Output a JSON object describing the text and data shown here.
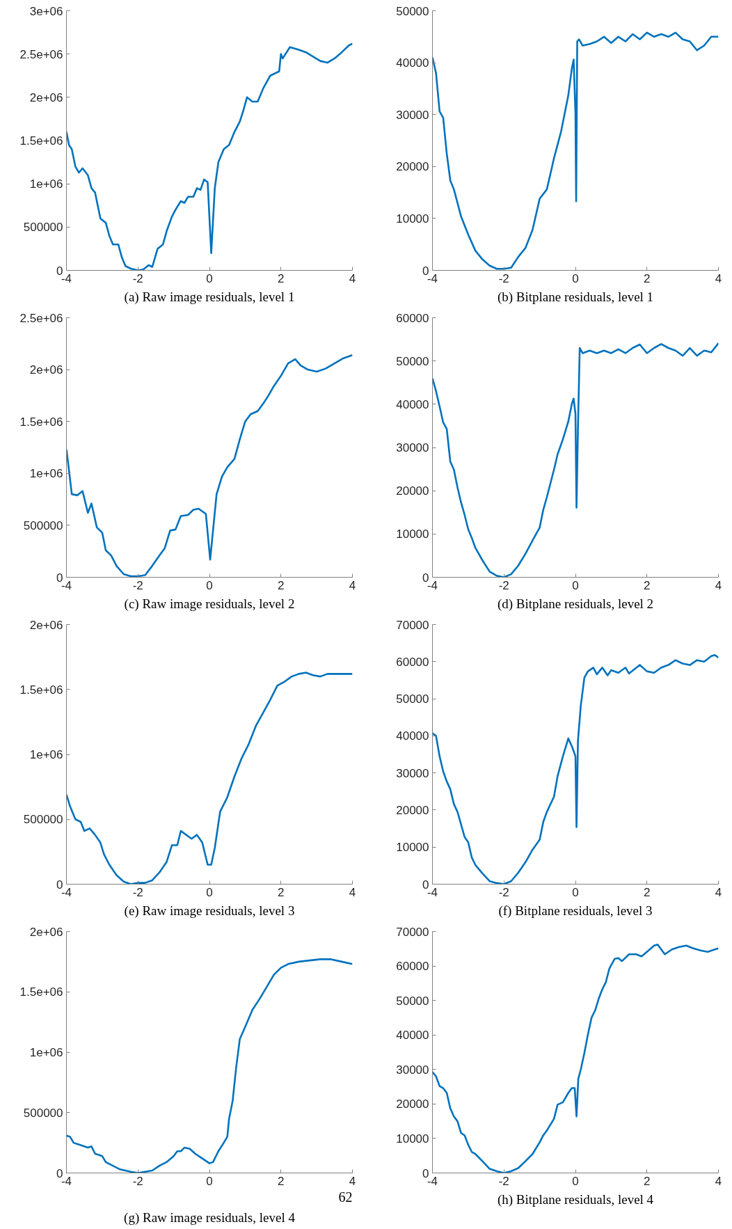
{
  "chart_data": [
    {
      "type": "line",
      "title": "(a) Raw image residuals, level 1",
      "x": [
        -4,
        -3.93,
        -3.85,
        -3.75,
        -3.65,
        -3.55,
        -3.4,
        -3.3,
        -3.2,
        -3.05,
        -2.9,
        -2.8,
        -2.7,
        -2.55,
        -2.45,
        -2.35,
        -2.2,
        -2.0,
        -1.85,
        -1.7,
        -1.6,
        -1.45,
        -1.3,
        -1.2,
        -1.05,
        -0.95,
        -0.8,
        -0.7,
        -0.6,
        -0.45,
        -0.35,
        -0.25,
        -0.15,
        -0.05,
        0.05,
        0.15,
        0.25,
        0.4,
        0.55,
        0.7,
        0.85,
        0.95,
        1.05,
        1.2,
        1.35,
        1.5,
        1.7,
        1.85,
        1.95,
        2.0,
        2.05,
        2.25,
        2.5,
        2.7,
        2.9,
        3.1,
        3.3,
        3.5,
        3.7,
        3.9,
        4.0
      ],
      "series": [
        {
          "color": "#0072bd",
          "values": [
            1600000,
            1450000,
            1400000,
            1200000,
            1130000,
            1180000,
            1100000,
            950000,
            900000,
            600000,
            550000,
            400000,
            300000,
            300000,
            150000,
            50000,
            20000,
            0,
            10000,
            60000,
            40000,
            250000,
            300000,
            450000,
            620000,
            700000,
            800000,
            780000,
            850000,
            850000,
            950000,
            930000,
            1050000,
            1020000,
            200000,
            950000,
            1250000,
            1400000,
            1450000,
            1600000,
            1720000,
            1850000,
            2000000,
            1950000,
            1950000,
            2100000,
            2250000,
            2280000,
            2300000,
            2500000,
            2450000,
            2580000,
            2550000,
            2520000,
            2470000,
            2420000,
            2400000,
            2450000,
            2520000,
            2600000,
            2620000
          ]
        }
      ],
      "xlim": [
        -4,
        4
      ],
      "xticks": [
        -4,
        -2,
        0,
        2,
        4
      ],
      "ylim": [
        0,
        3000000
      ],
      "yticks": [
        0,
        500000,
        {
          "value": 1000000,
          "label": "1e+06"
        },
        {
          "value": 1500000,
          "label": "1.5e+06"
        },
        {
          "value": 2000000,
          "label": "2e+06"
        },
        {
          "value": 2500000,
          "label": "2.5e+06"
        },
        {
          "value": 3000000,
          "label": "3e+06"
        }
      ]
    },
    {
      "type": "line",
      "title": "(b) Bitplane residuals, level 1",
      "x": [
        -4,
        -3.9,
        -3.8,
        -3.7,
        -3.6,
        -3.5,
        -3.4,
        -3.2,
        -3.0,
        -2.8,
        -2.6,
        -2.4,
        -2.2,
        -2.0,
        -1.8,
        -1.6,
        -1.4,
        -1.2,
        -1.0,
        -0.8,
        -0.6,
        -0.4,
        -0.2,
        -0.1,
        -0.05,
        0.0,
        0.02,
        0.05,
        0.1,
        0.2,
        0.4,
        0.6,
        0.8,
        1.0,
        1.2,
        1.4,
        1.6,
        1.8,
        2.0,
        2.2,
        2.4,
        2.6,
        2.8,
        3.0,
        3.2,
        3.4,
        3.6,
        3.8,
        4.0
      ],
      "series": [
        {
          "color": "#0072bd",
          "values": [
            41000,
            38000,
            30600,
            29400,
            22500,
            17300,
            15600,
            10400,
            6900,
            3800,
            2100,
            900,
            300,
            300,
            500,
            2600,
            4300,
            7800,
            13800,
            15600,
            21600,
            26800,
            33700,
            38900,
            40600,
            30300,
            13300,
            44100,
            44500,
            43300,
            43600,
            44100,
            45000,
            43800,
            45000,
            44100,
            45500,
            44500,
            45800,
            45000,
            45500,
            45000,
            45800,
            44500,
            44100,
            42400,
            43300,
            45000,
            45000
          ]
        }
      ],
      "xlim": [
        -4,
        4
      ],
      "xticks": [
        -4,
        -2,
        0,
        2,
        4
      ],
      "ylim": [
        0,
        50000
      ],
      "yticks": [
        0,
        10000,
        20000,
        30000,
        40000,
        50000
      ]
    },
    {
      "type": "line",
      "title": "(c) Raw image residuals, level 2",
      "x": [
        -4,
        -3.95,
        -3.85,
        -3.7,
        -3.55,
        -3.4,
        -3.3,
        -3.15,
        -3.0,
        -2.9,
        -2.75,
        -2.6,
        -2.4,
        -2.2,
        -2.0,
        -1.8,
        -1.6,
        -1.4,
        -1.25,
        -1.1,
        -0.95,
        -0.8,
        -0.6,
        -0.45,
        -0.3,
        -0.1,
        0.02,
        0.1,
        0.2,
        0.35,
        0.5,
        0.7,
        0.85,
        1.0,
        1.15,
        1.35,
        1.5,
        1.65,
        1.8,
        2.0,
        2.2,
        2.4,
        2.55,
        2.75,
        3.0,
        3.25,
        3.5,
        3.75,
        4.0
      ],
      "series": [
        {
          "color": "#0072bd",
          "values": [
            1230000,
            1090000,
            800000,
            790000,
            830000,
            620000,
            710000,
            480000,
            430000,
            260000,
            210000,
            110000,
            30000,
            10000,
            10000,
            20000,
            110000,
            210000,
            280000,
            450000,
            460000,
            590000,
            600000,
            650000,
            660000,
            610000,
            170000,
            450000,
            800000,
            970000,
            1060000,
            1140000,
            1330000,
            1500000,
            1570000,
            1600000,
            1670000,
            1750000,
            1840000,
            1940000,
            2060000,
            2100000,
            2040000,
            2000000,
            1980000,
            2010000,
            2060000,
            2110000,
            2140000
          ]
        }
      ],
      "xlim": [
        -4,
        4
      ],
      "xticks": [
        -4,
        -2,
        0,
        2,
        4
      ],
      "ylim": [
        0,
        2500000
      ],
      "yticks": [
        0,
        500000,
        {
          "value": 1000000,
          "label": "1e+06"
        },
        {
          "value": 1500000,
          "label": "1.5e+06"
        },
        {
          "value": 2000000,
          "label": "2e+06"
        },
        {
          "value": 2500000,
          "label": "2.5e+06"
        }
      ]
    },
    {
      "type": "line",
      "title": "(d) Bitplane residuals, level 2",
      "x": [
        -4,
        -3.9,
        -3.8,
        -3.7,
        -3.6,
        -3.5,
        -3.4,
        -3.3,
        -3.2,
        -3.1,
        -3.0,
        -2.9,
        -2.8,
        -2.6,
        -2.4,
        -2.2,
        -2.0,
        -1.8,
        -1.6,
        -1.4,
        -1.2,
        -1.0,
        -0.9,
        -0.8,
        -0.6,
        -0.5,
        -0.35,
        -0.2,
        -0.1,
        -0.05,
        0.0,
        0.03,
        0.07,
        0.12,
        0.2,
        0.4,
        0.6,
        0.8,
        1.0,
        1.2,
        1.4,
        1.6,
        1.8,
        2.0,
        2.2,
        2.4,
        2.6,
        2.8,
        3.0,
        3.2,
        3.4,
        3.6,
        3.8,
        4.0
      ],
      "series": [
        {
          "color": "#0072bd",
          "values": [
            46000,
            43000,
            39500,
            35800,
            34300,
            26700,
            24900,
            20800,
            17300,
            14400,
            11100,
            9100,
            6800,
            3900,
            1300,
            350,
            0,
            700,
            2700,
            5400,
            8500,
            11500,
            15600,
            18500,
            24900,
            28400,
            31900,
            36000,
            40100,
            41300,
            37800,
            16100,
            34300,
            53000,
            51800,
            52400,
            51800,
            52400,
            51800,
            52700,
            51800,
            53000,
            53800,
            51800,
            53000,
            53900,
            53000,
            52400,
            51200,
            53000,
            51200,
            52400,
            52000,
            54100
          ]
        }
      ],
      "xlim": [
        -4,
        4
      ],
      "xticks": [
        -4,
        -2,
        0,
        2,
        4
      ],
      "ylim": [
        0,
        60000
      ],
      "yticks": [
        0,
        10000,
        20000,
        30000,
        40000,
        50000,
        60000
      ]
    },
    {
      "type": "line",
      "title": "(e) Raw image residuals, level 3",
      "x": [
        -4,
        -3.9,
        -3.75,
        -3.6,
        -3.5,
        -3.35,
        -3.2,
        -3.05,
        -2.95,
        -2.8,
        -2.6,
        -2.4,
        -2.2,
        -2.0,
        -1.8,
        -1.6,
        -1.4,
        -1.2,
        -1.05,
        -0.9,
        -0.8,
        -0.65,
        -0.5,
        -0.35,
        -0.2,
        -0.05,
        0.05,
        0.15,
        0.3,
        0.5,
        0.7,
        0.9,
        1.1,
        1.3,
        1.5,
        1.7,
        1.9,
        2.1,
        2.3,
        2.5,
        2.7,
        2.9,
        3.1,
        3.3,
        3.6,
        4.0
      ],
      "series": [
        {
          "color": "#0072bd",
          "values": [
            690000,
            600000,
            500000,
            480000,
            410000,
            430000,
            380000,
            320000,
            230000,
            150000,
            70000,
            20000,
            0,
            10000,
            10000,
            30000,
            90000,
            170000,
            300000,
            300000,
            410000,
            380000,
            350000,
            380000,
            320000,
            150000,
            150000,
            280000,
            560000,
            670000,
            830000,
            970000,
            1080000,
            1220000,
            1320000,
            1420000,
            1530000,
            1560000,
            1600000,
            1620000,
            1630000,
            1610000,
            1600000,
            1620000,
            1620000,
            1620000
          ]
        }
      ],
      "xlim": [
        -4,
        4
      ],
      "xticks": [
        -4,
        -2,
        0,
        2,
        4
      ],
      "ylim": [
        0,
        2000000
      ],
      "yticks": [
        0,
        500000,
        {
          "value": 1000000,
          "label": "1e+06"
        },
        {
          "value": 1500000,
          "label": "1.5e+06"
        },
        {
          "value": 2000000,
          "label": "2e+06"
        }
      ]
    },
    {
      "type": "line",
      "title": "(f) Bitplane residuals, level 3",
      "x": [
        -4,
        -3.9,
        -3.8,
        -3.7,
        -3.6,
        -3.5,
        -3.4,
        -3.3,
        -3.2,
        -3.1,
        -3.0,
        -2.9,
        -2.8,
        -2.6,
        -2.4,
        -2.2,
        -2.0,
        -1.8,
        -1.6,
        -1.4,
        -1.2,
        -1.0,
        -0.9,
        -0.8,
        -0.6,
        -0.5,
        -0.35,
        -0.2,
        -0.1,
        0.0,
        0.03,
        0.07,
        0.15,
        0.25,
        0.35,
        0.5,
        0.6,
        0.75,
        0.9,
        1.0,
        1.2,
        1.4,
        1.5,
        1.8,
        2.0,
        2.2,
        2.4,
        2.6,
        2.8,
        3.0,
        3.2,
        3.4,
        3.6,
        3.8,
        3.9,
        4.0
      ],
      "series": [
        {
          "color": "#0072bd",
          "values": [
            40700,
            40000,
            34500,
            30400,
            27700,
            25600,
            21600,
            19500,
            16100,
            12700,
            11300,
            7200,
            5200,
            2900,
            800,
            300,
            0,
            800,
            3100,
            5900,
            9300,
            12000,
            16800,
            19500,
            23600,
            29100,
            34500,
            39300,
            37200,
            34500,
            15400,
            38600,
            48200,
            55700,
            57400,
            58400,
            56600,
            58400,
            56300,
            57700,
            57000,
            58400,
            56800,
            59100,
            57400,
            57000,
            58400,
            59100,
            60400,
            59500,
            59100,
            60400,
            60000,
            61500,
            61800,
            61100
          ]
        }
      ],
      "xlim": [
        -4,
        4
      ],
      "xticks": [
        -4,
        -2,
        0,
        2,
        4
      ],
      "ylim": [
        0,
        70000
      ],
      "yticks": [
        0,
        10000,
        20000,
        30000,
        40000,
        50000,
        60000,
        70000
      ]
    },
    {
      "type": "line",
      "title": "(g) Raw image residuals, level 4",
      "annotations": [
        "62"
      ],
      "x": [
        -4,
        -3.9,
        -3.8,
        -3.6,
        -3.4,
        -3.3,
        -3.2,
        -3.0,
        -2.9,
        -2.7,
        -2.5,
        -2.2,
        -2.0,
        -1.8,
        -1.6,
        -1.4,
        -1.2,
        -1.0,
        -0.9,
        -0.8,
        -0.7,
        -0.55,
        -0.4,
        -0.2,
        0.0,
        0.1,
        0.25,
        0.4,
        0.5,
        0.55,
        0.65,
        0.75,
        0.85,
        1.0,
        1.2,
        1.4,
        1.6,
        1.8,
        2.0,
        2.2,
        2.5,
        2.8,
        3.1,
        3.4,
        3.7,
        4.0
      ],
      "series": [
        {
          "color": "#0072bd",
          "values": [
            310000,
            300000,
            250000,
            230000,
            210000,
            220000,
            160000,
            140000,
            90000,
            60000,
            30000,
            10000,
            0,
            10000,
            20000,
            60000,
            90000,
            140000,
            180000,
            180000,
            210000,
            200000,
            160000,
            120000,
            80000,
            90000,
            180000,
            250000,
            300000,
            450000,
            600000,
            880000,
            1110000,
            1210000,
            1350000,
            1440000,
            1540000,
            1640000,
            1700000,
            1730000,
            1750000,
            1760000,
            1770000,
            1770000,
            1750000,
            1730000
          ]
        }
      ],
      "xlim": [
        -4,
        4
      ],
      "xticks": [
        -4,
        -2,
        0,
        2,
        4
      ],
      "ylim": [
        0,
        2000000
      ],
      "yticks": [
        0,
        500000,
        {
          "value": 1000000,
          "label": "1e+06"
        },
        {
          "value": 1500000,
          "label": "1.5e+06"
        },
        {
          "value": 2000000,
          "label": "2e+06"
        }
      ]
    },
    {
      "type": "line",
      "title": "(h) Bitplane residuals, level 4",
      "x": [
        -4,
        -3.9,
        -3.8,
        -3.7,
        -3.6,
        -3.5,
        -3.4,
        -3.3,
        -3.2,
        -3.1,
        -3.0,
        -2.9,
        -2.8,
        -2.6,
        -2.4,
        -2.2,
        -2.0,
        -1.8,
        -1.6,
        -1.4,
        -1.2,
        -1.0,
        -0.9,
        -0.8,
        -0.6,
        -0.5,
        -0.35,
        -0.2,
        -0.1,
        -0.02,
        0.03,
        0.08,
        0.15,
        0.25,
        0.35,
        0.45,
        0.55,
        0.65,
        0.75,
        0.85,
        0.95,
        1.1,
        1.2,
        1.3,
        1.5,
        1.7,
        1.85,
        2.0,
        2.2,
        2.3,
        2.4,
        2.5,
        2.7,
        2.9,
        3.1,
        3.3,
        3.5,
        3.7,
        3.9,
        4.0
      ],
      "series": [
        {
          "color": "#0072bd",
          "values": [
            29300,
            28000,
            25200,
            24600,
            23200,
            18700,
            16400,
            15000,
            11600,
            10900,
            8200,
            6100,
            5500,
            3400,
            1200,
            500,
            0,
            500,
            1400,
            3400,
            5500,
            8900,
            10900,
            12300,
            15700,
            19800,
            20500,
            23200,
            24600,
            24600,
            16400,
            27300,
            30000,
            34800,
            40200,
            45000,
            47100,
            50500,
            53200,
            55300,
            59300,
            62100,
            62300,
            61400,
            63400,
            63400,
            62800,
            64100,
            65900,
            66200,
            64800,
            63400,
            64800,
            65500,
            65900,
            65100,
            64500,
            64100,
            64800,
            65100
          ]
        }
      ],
      "xlim": [
        -4,
        4
      ],
      "xticks": [
        -4,
        -2,
        0,
        2,
        4
      ],
      "ylim": [
        0,
        70000
      ],
      "yticks": [
        0,
        10000,
        20000,
        30000,
        40000,
        50000,
        60000,
        70000
      ]
    }
  ]
}
